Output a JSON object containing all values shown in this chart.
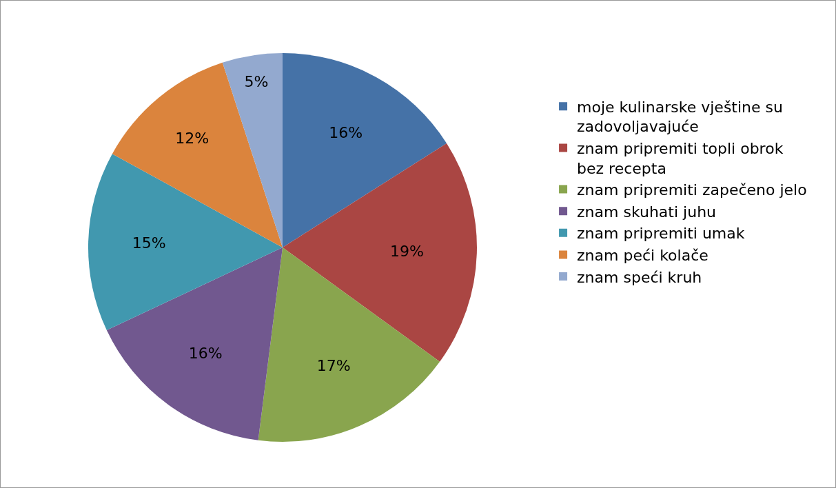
{
  "chart_data": {
    "type": "pie",
    "categories": [
      "moje kulinarske vještine su zadovoljavajuće",
      "znam pripremiti topli obrok bez recepta",
      "znam pripremiti zapečeno jelo",
      "znam skuhati juhu",
      "znam pripremiti umak",
      "znam peći kolače",
      "znam speći kruh"
    ],
    "values": [
      16,
      19,
      17,
      16,
      15,
      12,
      5
    ],
    "value_labels": [
      "16%",
      "19%",
      "17%",
      "16%",
      "15%",
      "12%",
      "5%"
    ],
    "colors": [
      "#4572a7",
      "#aa4643",
      "#89a54e",
      "#71588f",
      "#4198af",
      "#db843d",
      "#93a9cf"
    ],
    "legend": "right"
  }
}
